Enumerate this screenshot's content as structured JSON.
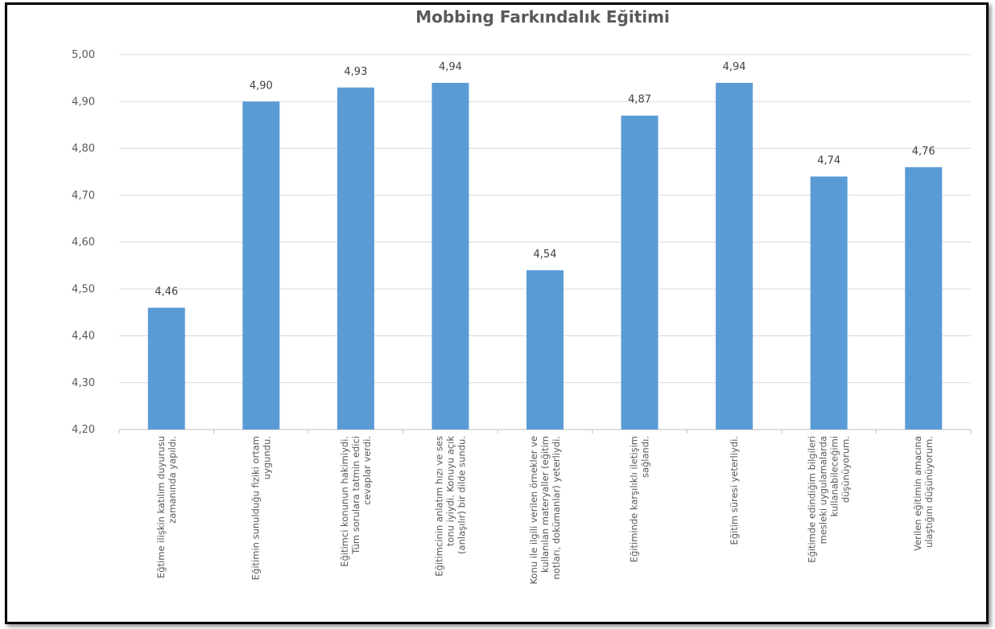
{
  "chart_data": {
    "type": "bar",
    "title": "Mobbing Farkındalık Eğitimi",
    "xlabel": "",
    "ylabel": "",
    "ylim": [
      4.2,
      5.0
    ],
    "yticks": [
      "4,20",
      "4,30",
      "4,40",
      "4,50",
      "4,60",
      "4,70",
      "4,80",
      "4,90",
      "5,00"
    ],
    "ytick_values": [
      4.2,
      4.3,
      4.4,
      4.5,
      4.6,
      4.7,
      4.8,
      4.9,
      5.0
    ],
    "grid": true,
    "legend": "none",
    "bar_color": "#5B9BD5",
    "categories": [
      [
        "Eğtime ilişkin katılım duyurusu",
        "zamanında yapıldı."
      ],
      [
        "Eğitimin sunulduğu fiziki ortam",
        "uygundu."
      ],
      [
        "Eğitimci konunun hakimiydi.",
        "Tüm sorulara tatmin edici",
        "cevaplar verdi."
      ],
      [
        "Eğitimcinin anlatım hızı ve ses",
        "tonu iyiydi. Konuyu açık",
        "(anlaşılır) bir dilde sundu."
      ],
      [
        "Konu ile ilgili verilen örnekler ve",
        "kullanılan materyaller (eğitim",
        "notları, dokümanlar) yeterliydi."
      ],
      [
        "Eğitiminde karşılıklı iletişim",
        "sağlandı."
      ],
      [
        "Eğitim süresi yeterliydi."
      ],
      [
        "Eğitimde edindiğim bilgileri",
        "mesleki uygulamalarda",
        "kullanabileceğimi",
        "düşünüyorum."
      ],
      [
        "Verilen eğitimin amacına",
        "ulaştığını düşünüyorum."
      ]
    ],
    "values": [
      4.46,
      4.9,
      4.93,
      4.94,
      4.54,
      4.87,
      4.94,
      4.74,
      4.76
    ],
    "data_labels": [
      "4,46",
      "4,90",
      "4,93",
      "4,94",
      "4,54",
      "4,87",
      "4,94",
      "4,74",
      "4,76"
    ]
  }
}
